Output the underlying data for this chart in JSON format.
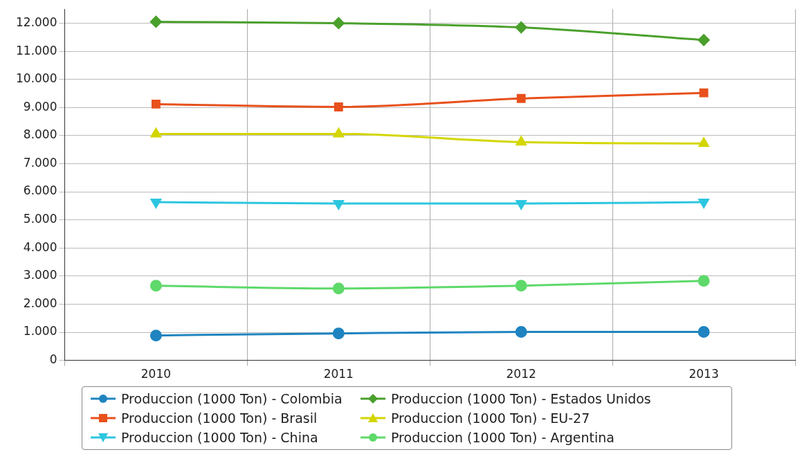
{
  "chart_data": {
    "type": "line",
    "categories": [
      "2010",
      "2011",
      "2012",
      "2013"
    ],
    "series": [
      {
        "name": "Produccion (1000 Ton) - Colombia",
        "color": "#1f84c0",
        "marker": "circle",
        "values": [
          885,
          960,
          1010,
          1010
        ]
      },
      {
        "name": "Produccion (1000 Ton) - Estados Unidos",
        "color": "#4aa02c",
        "marker": "diamond",
        "values": [
          12050,
          12000,
          11850,
          11400
        ]
      },
      {
        "name": "Produccion (1000 Ton) - Brasil",
        "color": "#e8501c",
        "marker": "square",
        "values": [
          9120,
          9020,
          9320,
          9520
        ]
      },
      {
        "name": "Produccion (1000 Ton) - EU-27",
        "color": "#d4d600",
        "marker": "triangle",
        "values": [
          8060,
          8060,
          7770,
          7720
        ]
      },
      {
        "name": "Produccion (1000 Ton) - China",
        "color": "#2cc6e0",
        "marker": "triangle-down",
        "values": [
          5630,
          5580,
          5580,
          5630
        ]
      },
      {
        "name": "Produccion (1000 Ton) - Argentina",
        "color": "#5ed96a",
        "marker": "circle",
        "values": [
          2655,
          2560,
          2655,
          2830
        ]
      }
    ],
    "ylim": [
      0,
      12500
    ],
    "yticks": [
      {
        "value": 0,
        "label": "0"
      },
      {
        "value": 1000,
        "label": "1.000"
      },
      {
        "value": 2000,
        "label": "2.000"
      },
      {
        "value": 3000,
        "label": "3.000"
      },
      {
        "value": 4000,
        "label": "4.000"
      },
      {
        "value": 5000,
        "label": "5.000"
      },
      {
        "value": 6000,
        "label": "6.000"
      },
      {
        "value": 7000,
        "label": "7.000"
      },
      {
        "value": 8000,
        "label": "8.000"
      },
      {
        "value": 9000,
        "label": "9.000"
      },
      {
        "value": 10000,
        "label": "10.000"
      },
      {
        "value": 11000,
        "label": "11.000"
      },
      {
        "value": 12000,
        "label": "12.000"
      }
    ],
    "grid": true,
    "legend": "bottom",
    "line_style": "solid"
  }
}
